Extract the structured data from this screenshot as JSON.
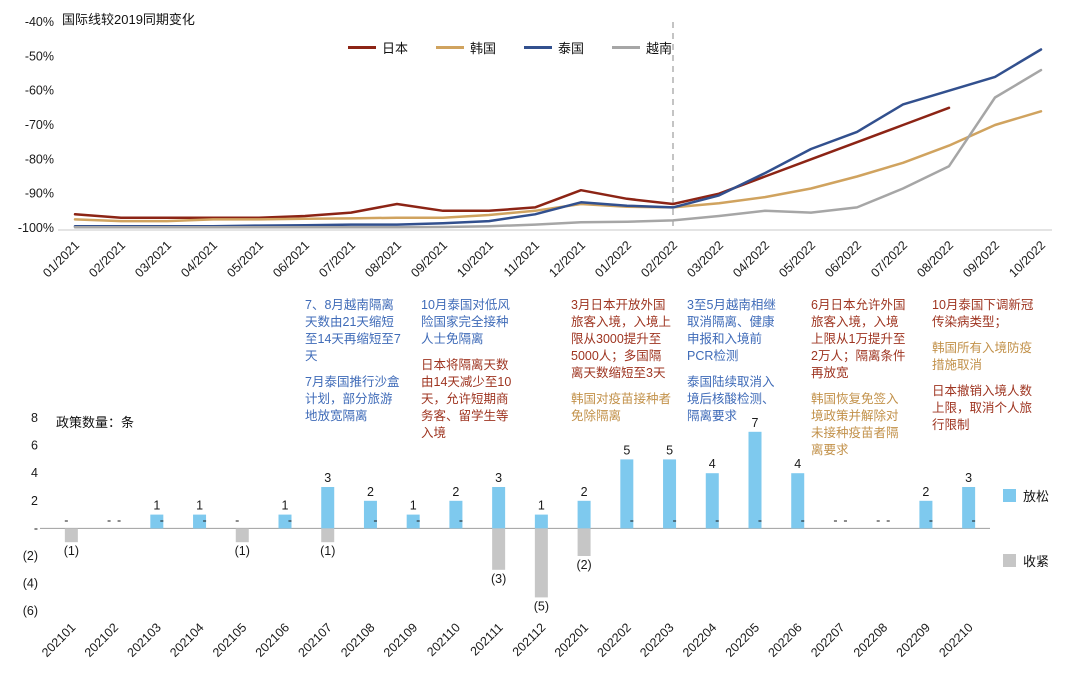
{
  "colors": {
    "ann_blue": "#3F6BB8",
    "ann_red": "#9E3420",
    "ann_tan": "#C2914A",
    "axis_gray": "#C8C8C8",
    "divider_gray": "#ABABAB",
    "zero_line": "#9E9E9E"
  },
  "chart_data": [
    {
      "type": "line",
      "title": "国际线较2019同期变化",
      "x": [
        "01/2021",
        "02/2021",
        "03/2021",
        "04/2021",
        "05/2021",
        "06/2021",
        "07/2021",
        "08/2021",
        "09/2021",
        "10/2021",
        "11/2021",
        "12/2021",
        "01/2022",
        "02/2022",
        "03/2022",
        "04/2022",
        "05/2022",
        "06/2022",
        "07/2022",
        "08/2022",
        "09/2022",
        "10/2022"
      ],
      "ylim": [
        -100,
        -40
      ],
      "yticks": [
        "-40%",
        "-50%",
        "-60%",
        "-70%",
        "-80%",
        "-90%",
        "-100%"
      ],
      "vline_x": "02/2022",
      "grid": false,
      "legend_position": "top-center",
      "series": [
        {
          "name": "日本",
          "color": "#8C2415",
          "values": [
            -96,
            -97,
            -97,
            -97,
            -97,
            -96.5,
            -95.5,
            -93,
            -95,
            -95,
            -94,
            -89,
            -91.5,
            -93,
            -90,
            -85,
            -80,
            -75,
            -70,
            -65,
            null,
            null
          ]
        },
        {
          "name": "韩国",
          "color": "#D0A35F",
          "values": [
            -97.5,
            -98,
            -98,
            -97.5,
            -97.5,
            -97.3,
            -97.2,
            -97,
            -97,
            -96.2,
            -95,
            -93,
            -93.8,
            -94,
            -92.8,
            -91,
            -88.5,
            -85,
            -81,
            -76,
            -70,
            -66
          ]
        },
        {
          "name": "泰国",
          "color": "#32508E",
          "values": [
            -99.5,
            -99.5,
            -99.5,
            -99.5,
            -99.3,
            -99.2,
            -99,
            -99,
            -98.6,
            -98,
            -96,
            -92.5,
            -93.5,
            -94,
            -90.5,
            -84,
            -77,
            -72,
            -64,
            -60,
            -56,
            -48
          ]
        },
        {
          "name": "越南",
          "color": "#A6A6A6",
          "values": [
            -99.8,
            -99.8,
            -99.8,
            -99.8,
            -99.8,
            -99.8,
            -99.8,
            -99.8,
            -99.7,
            -99.5,
            -99,
            -98.3,
            -98.2,
            -97.8,
            -96.5,
            -95,
            -95.5,
            -94,
            -88.5,
            -82,
            -62,
            -54
          ]
        }
      ]
    },
    {
      "type": "bar",
      "title": "政策数量：条",
      "categories": [
        "202101",
        "202102",
        "202103",
        "202104",
        "202105",
        "202106",
        "202107",
        "202108",
        "202109",
        "202110",
        "202111",
        "202112",
        "202201",
        "202202",
        "202203",
        "202204",
        "202205",
        "202206",
        "202207",
        "202208",
        "202209",
        "202210"
      ],
      "ylim": [
        -6,
        8
      ],
      "yticks": [
        "8",
        "6",
        "4",
        "2",
        "-",
        "(2)",
        "(4)",
        "(6)"
      ],
      "zero_value_label": "-",
      "grid": false,
      "legend_position": "right",
      "series": [
        {
          "name": "放松",
          "color": "#7EC9EE",
          "values": [
            0,
            0,
            1,
            1,
            0,
            1,
            3,
            2,
            1,
            2,
            3,
            1,
            2,
            5,
            5,
            4,
            7,
            4,
            0,
            0,
            2,
            3
          ]
        },
        {
          "name": "收紧",
          "color": "#C6C6C6",
          "values": [
            -1,
            0,
            0,
            0,
            -1,
            0,
            -1,
            0,
            0,
            0,
            -3,
            -5,
            -2,
            0,
            0,
            0,
            0,
            0,
            0,
            0,
            0,
            0
          ]
        }
      ]
    }
  ],
  "annotations": [
    {
      "blocks": [
        {
          "color": "blue",
          "text": "7、8月越南隔离天数由21天缩短至14天再缩短至7天"
        },
        {
          "color": "blue",
          "text": "7月泰国推行沙盒计划，部分旅游地放宽隔离"
        }
      ]
    },
    {
      "blocks": [
        {
          "color": "blue",
          "text": "10月泰国对低风险国家完全接种人士免隔离"
        },
        {
          "color": "red",
          "text": "日本将隔离天数由14天减少至10天，允许短期商务客、留学生等入境"
        }
      ]
    },
    {
      "blocks": [
        {
          "color": "red",
          "text": "3月日本开放外国旅客入境，入境上限从3000提升至5000人；多国隔离天数缩短至3天"
        },
        {
          "color": "tan",
          "text": "韩国对疫苗接种者免除隔离"
        }
      ]
    },
    {
      "blocks": [
        {
          "color": "blue",
          "text": "3至5月越南相继取消隔离、健康申报和入境前PCR检测"
        },
        {
          "color": "blue",
          "text": "泰国陆续取消入境后核酸检测、隔离要求"
        }
      ]
    },
    {
      "blocks": [
        {
          "color": "red",
          "text": "6月日本允许外国旅客入境，入境上限从1万提升至2万人；隔离条件再放宽"
        },
        {
          "color": "tan",
          "text": "韩国恢复免签入境政策并解除对未接种疫苗者隔离要求"
        }
      ]
    },
    {
      "blocks": [
        {
          "color": "red",
          "text": "10月泰国下调新冠传染病类型；"
        },
        {
          "color": "tan",
          "text": "韩国所有入境防疫措施取消"
        },
        {
          "color": "red",
          "text": "日本撤销入境人数上限，取消个人旅行限制"
        }
      ]
    }
  ]
}
